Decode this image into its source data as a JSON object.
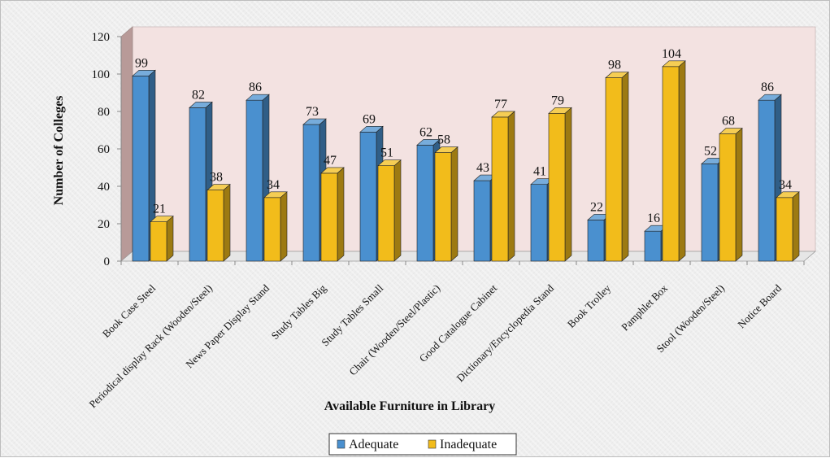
{
  "chart_data": {
    "type": "bar",
    "title": "",
    "xlabel": "Available Furniture in Library",
    "ylabel": "Number of Colleges",
    "ylim": [
      0,
      120
    ],
    "yticks": [
      0,
      20,
      40,
      60,
      80,
      100,
      120
    ],
    "categories": [
      "Book Case Steel",
      "Periodical display Rack (Wooden/Steel)",
      "News Paper Display Stand",
      "Study Tables Big",
      "Study Tables Small",
      "Chair (Wooden/Steel/Plastic)",
      "Good Catalogue Cabinet",
      "Dictionary/Encyclopedia Stand",
      "Book Trolley",
      "Pamphlet Box",
      "Stool (Wooden/Steel)",
      "Notice Board"
    ],
    "series": [
      {
        "name": "Adequate",
        "color": "#4a90cf",
        "values": [
          99,
          82,
          86,
          73,
          69,
          62,
          43,
          41,
          22,
          16,
          52,
          86
        ]
      },
      {
        "name": "Inadequate",
        "color": "#f2bc1b",
        "values": [
          21,
          38,
          34,
          47,
          51,
          58,
          77,
          79,
          98,
          104,
          68,
          34
        ]
      }
    ],
    "grid": false,
    "legend": "bottom-center",
    "style": "3d-clustered-column",
    "wall_color": "#f3e2e1"
  }
}
